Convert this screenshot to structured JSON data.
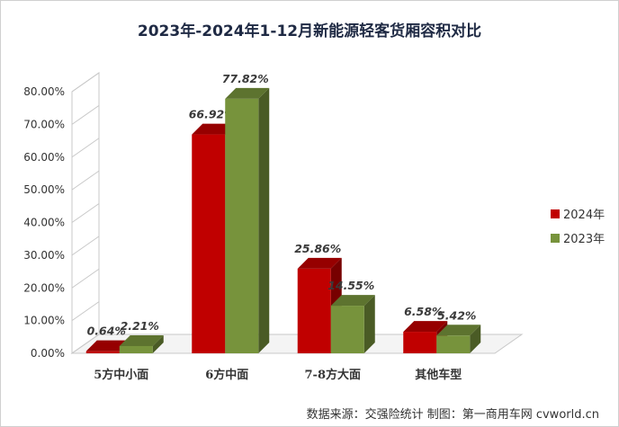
{
  "chart_data": {
    "type": "bar",
    "title": "2023年-2024年1-12月新能源轻客货厢容积对比",
    "categories": [
      "5方中小面",
      "6方中面",
      "7-8方大面",
      "其他车型"
    ],
    "series": [
      {
        "name": "2024年",
        "values": [
          0.64,
          66.92,
          25.86,
          6.58
        ],
        "labels": [
          "0.64%",
          "66.92%",
          "25.86%",
          "6.58%"
        ],
        "color": "#c00000"
      },
      {
        "name": "2023年",
        "values": [
          2.21,
          77.82,
          14.55,
          5.42
        ],
        "labels": [
          "2.21%",
          "77.82%",
          "14.55%",
          "5.42%"
        ],
        "color": "#77933c"
      }
    ],
    "ylim": [
      0,
      80
    ],
    "yticks": [
      "0.00%",
      "10.00%",
      "20.00%",
      "30.00%",
      "40.00%",
      "50.00%",
      "60.00%",
      "70.00%",
      "80.00%"
    ],
    "legend_position": "right",
    "grid": false,
    "source": "数据来源：交强险统计  制图：第一商用车网 cvworld.cn"
  }
}
